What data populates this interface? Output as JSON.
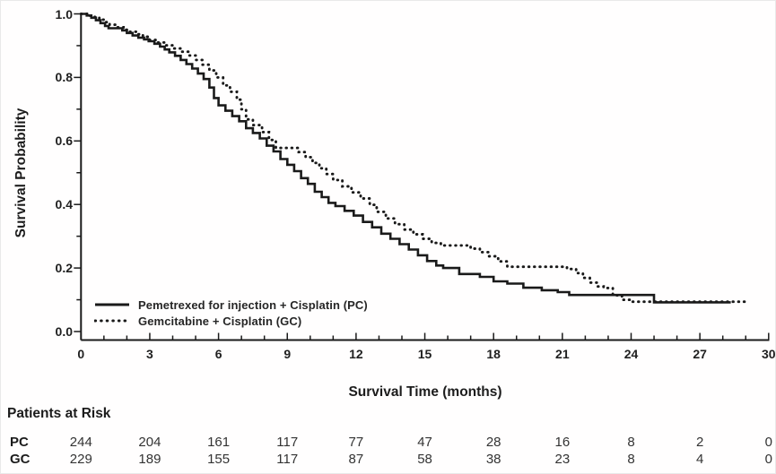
{
  "figure": {
    "ylabel": "Survival Probability",
    "xlabel": "Survival Time (months)"
  },
  "colors": {
    "line": "#1a1a1a",
    "text": "#1f1f1f",
    "background": "#ffffff"
  },
  "chart_data": {
    "type": "line",
    "subtype": "kaplan-meier-step",
    "title": "",
    "xlabel": "Survival Time (months)",
    "ylabel": "Survival Probability",
    "xlim": [
      0,
      30
    ],
    "ylim": [
      0.0,
      1.0
    ],
    "grid": false,
    "legend_position": "inside-lower-left",
    "x_tick_labels": [
      "0",
      "3",
      "6",
      "9",
      "12",
      "15",
      "18",
      "21",
      "24",
      "27",
      "30"
    ],
    "x_major_tick_interval": 3,
    "x_minor_tick_interval": 1,
    "y_tick_labels": [
      "1.0",
      "0.8",
      "0.6",
      "0.4",
      "0.2",
      "0.0"
    ],
    "y_major_tick_interval": 0.2,
    "y_minor_tick_interval": 0.1,
    "series": [
      {
        "name": "Pemetrexed for injection + Cisplatin (PC)",
        "style": "solid",
        "points": [
          [
            0,
            1.0
          ],
          [
            0.25,
            0.995
          ],
          [
            0.45,
            0.988
          ],
          [
            0.65,
            0.98
          ],
          [
            0.85,
            0.971
          ],
          [
            1.05,
            0.962
          ],
          [
            1.2,
            0.955
          ],
          [
            1.8,
            0.948
          ],
          [
            2.0,
            0.94
          ],
          [
            2.25,
            0.932
          ],
          [
            2.5,
            0.925
          ],
          [
            2.75,
            0.92
          ],
          [
            2.95,
            0.914
          ],
          [
            3.2,
            0.906
          ],
          [
            3.45,
            0.897
          ],
          [
            3.65,
            0.888
          ],
          [
            3.85,
            0.879
          ],
          [
            4.1,
            0.868
          ],
          [
            4.35,
            0.855
          ],
          [
            4.6,
            0.842
          ],
          [
            4.85,
            0.828
          ],
          [
            5.1,
            0.812
          ],
          [
            5.35,
            0.795
          ],
          [
            5.6,
            0.768
          ],
          [
            5.8,
            0.735
          ],
          [
            6.0,
            0.712
          ],
          [
            6.3,
            0.695
          ],
          [
            6.6,
            0.678
          ],
          [
            6.9,
            0.662
          ],
          [
            7.2,
            0.64
          ],
          [
            7.5,
            0.625
          ],
          [
            7.8,
            0.608
          ],
          [
            8.1,
            0.585
          ],
          [
            8.4,
            0.567
          ],
          [
            8.7,
            0.543
          ],
          [
            9.0,
            0.525
          ],
          [
            9.3,
            0.505
          ],
          [
            9.6,
            0.483
          ],
          [
            9.9,
            0.465
          ],
          [
            10.2,
            0.44
          ],
          [
            10.5,
            0.423
          ],
          [
            10.8,
            0.405
          ],
          [
            11.1,
            0.395
          ],
          [
            11.5,
            0.38
          ],
          [
            11.9,
            0.365
          ],
          [
            12.3,
            0.345
          ],
          [
            12.7,
            0.328
          ],
          [
            13.1,
            0.308
          ],
          [
            13.5,
            0.292
          ],
          [
            13.9,
            0.275
          ],
          [
            14.3,
            0.258
          ],
          [
            14.7,
            0.24
          ],
          [
            15.1,
            0.222
          ],
          [
            15.5,
            0.208
          ],
          [
            15.8,
            0.2
          ],
          [
            16.5,
            0.181
          ],
          [
            17.4,
            0.172
          ],
          [
            18.0,
            0.158
          ],
          [
            18.6,
            0.151
          ],
          [
            19.3,
            0.138
          ],
          [
            20.1,
            0.13
          ],
          [
            20.8,
            0.124
          ],
          [
            21.3,
            0.115
          ],
          [
            25.0,
            0.092
          ],
          [
            28.35,
            0.092
          ]
        ]
      },
      {
        "name": "Gemcitabine + Cisplatin (GC)",
        "style": "dotted",
        "points": [
          [
            0,
            1.0
          ],
          [
            0.35,
            0.994
          ],
          [
            0.6,
            0.99
          ],
          [
            0.8,
            0.982
          ],
          [
            1.0,
            0.974
          ],
          [
            1.25,
            0.966
          ],
          [
            1.55,
            0.958
          ],
          [
            1.85,
            0.95
          ],
          [
            2.1,
            0.944
          ],
          [
            2.4,
            0.936
          ],
          [
            2.7,
            0.928
          ],
          [
            3.0,
            0.918
          ],
          [
            3.3,
            0.91
          ],
          [
            3.7,
            0.901
          ],
          [
            4.0,
            0.891
          ],
          [
            4.35,
            0.881
          ],
          [
            4.7,
            0.869
          ],
          [
            5.0,
            0.855
          ],
          [
            5.3,
            0.84
          ],
          [
            5.6,
            0.822
          ],
          [
            5.9,
            0.8
          ],
          [
            6.2,
            0.775
          ],
          [
            6.5,
            0.755
          ],
          [
            6.8,
            0.73
          ],
          [
            7.0,
            0.7
          ],
          [
            7.2,
            0.668
          ],
          [
            7.5,
            0.65
          ],
          [
            7.9,
            0.628
          ],
          [
            8.2,
            0.603
          ],
          [
            8.5,
            0.578
          ],
          [
            9.5,
            0.565
          ],
          [
            9.8,
            0.549
          ],
          [
            10.1,
            0.531
          ],
          [
            10.4,
            0.514
          ],
          [
            10.7,
            0.496
          ],
          [
            11.0,
            0.477
          ],
          [
            11.4,
            0.457
          ],
          [
            11.8,
            0.438
          ],
          [
            12.2,
            0.419
          ],
          [
            12.6,
            0.399
          ],
          [
            12.9,
            0.377
          ],
          [
            13.3,
            0.356
          ],
          [
            13.7,
            0.338
          ],
          [
            14.1,
            0.321
          ],
          [
            14.5,
            0.306
          ],
          [
            14.9,
            0.292
          ],
          [
            15.3,
            0.279
          ],
          [
            15.7,
            0.271
          ],
          [
            17.0,
            0.261
          ],
          [
            17.4,
            0.25
          ],
          [
            17.8,
            0.237
          ],
          [
            18.2,
            0.221
          ],
          [
            18.6,
            0.204
          ],
          [
            21.2,
            0.197
          ],
          [
            21.6,
            0.184
          ],
          [
            21.9,
            0.169
          ],
          [
            22.2,
            0.154
          ],
          [
            22.5,
            0.142
          ],
          [
            22.8,
            0.137
          ],
          [
            23.2,
            0.114
          ],
          [
            23.6,
            0.1
          ],
          [
            24.0,
            0.094
          ],
          [
            29.1,
            0.094
          ]
        ]
      }
    ],
    "risk_table": {
      "title": "Patients at Risk",
      "months": [
        0,
        3,
        6,
        9,
        12,
        15,
        18,
        21,
        24,
        27,
        30
      ],
      "rows": [
        {
          "label": "PC",
          "values": [
            244,
            204,
            161,
            117,
            77,
            47,
            28,
            16,
            8,
            2,
            0
          ]
        },
        {
          "label": "GC",
          "values": [
            229,
            189,
            155,
            117,
            87,
            58,
            38,
            23,
            8,
            4,
            0
          ]
        }
      ]
    }
  }
}
